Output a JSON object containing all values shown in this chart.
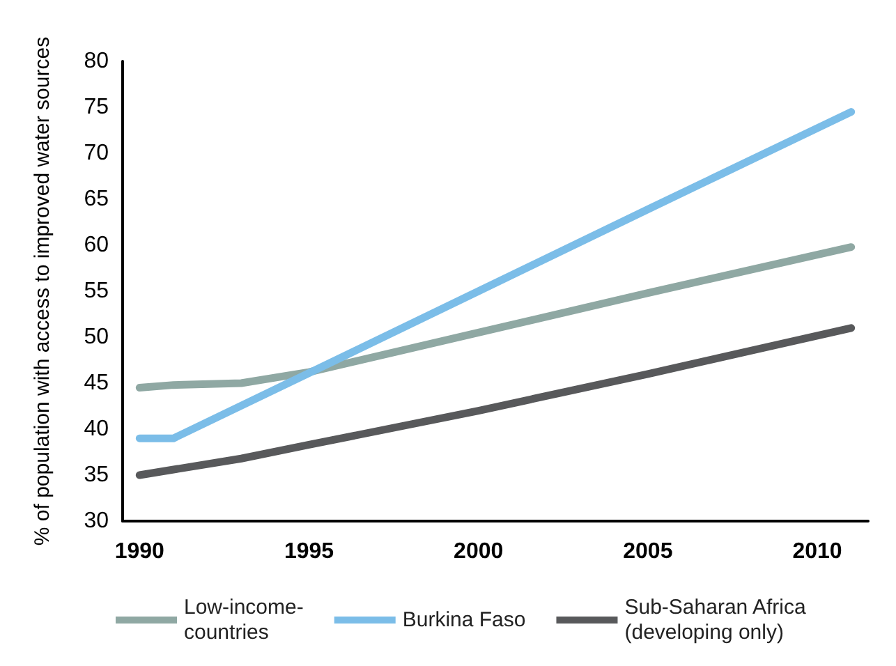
{
  "chart_data": {
    "type": "line",
    "ylabel": "% of population with access to improved water sources",
    "xlim": [
      1989.5,
      2011.5
    ],
    "xticks": [
      1990,
      1995,
      2000,
      2005,
      2010
    ],
    "ylim": [
      30,
      80
    ],
    "yticks": [
      30,
      35,
      40,
      45,
      50,
      55,
      60,
      65,
      70,
      75,
      80
    ],
    "grid": false,
    "legend": "bottom",
    "marker": "none",
    "line_style": "solid",
    "series": [
      {
        "name": "Low-income-\ncountries",
        "color": "#8fa8a3",
        "x": [
          1990,
          1991,
          1993,
          1995,
          2000,
          2005,
          2011
        ],
        "values": [
          44.5,
          44.8,
          45,
          46.2,
          50.5,
          54.8,
          59.8
        ]
      },
      {
        "name": "Burkina Faso",
        "color": "#7bbde8",
        "x": [
          1990,
          1991,
          1995,
          2000,
          2005,
          2011
        ],
        "values": [
          39,
          39,
          46.1,
          55,
          63.9,
          74.5
        ]
      },
      {
        "name": "Sub-Saharan Africa\n(developing only)",
        "color": "#58595b",
        "x": [
          1990,
          1993,
          1995,
          2000,
          2005,
          2011
        ],
        "values": [
          35,
          36.8,
          38.3,
          42,
          46,
          51
        ]
      }
    ]
  }
}
